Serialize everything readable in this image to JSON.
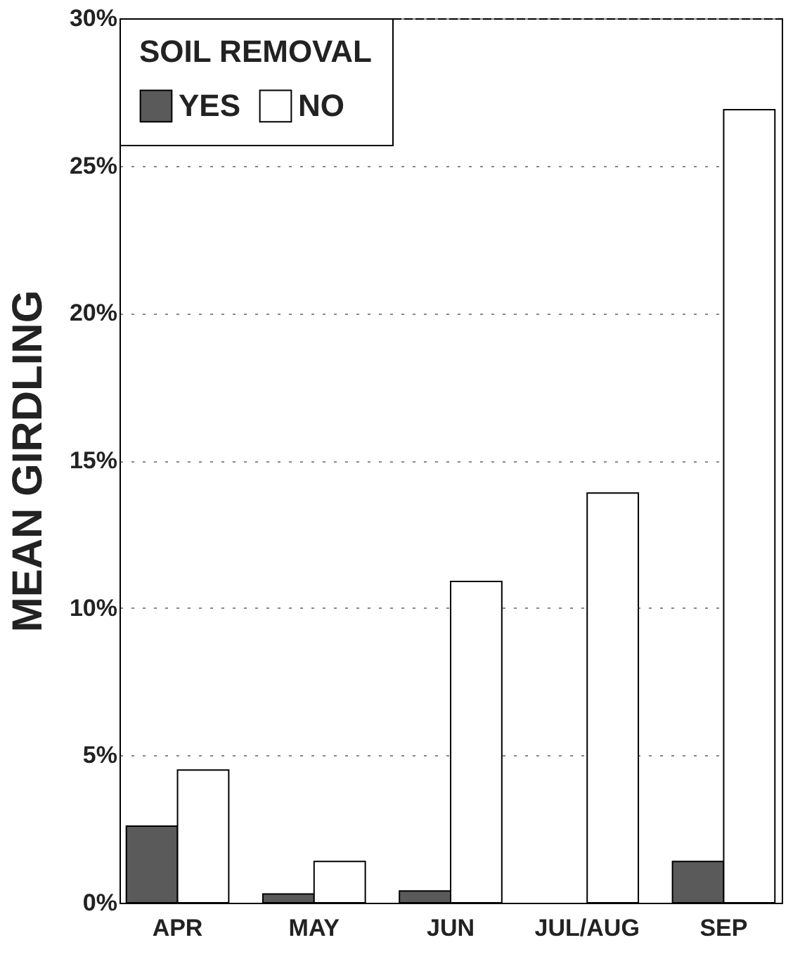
{
  "chart_data": {
    "type": "bar",
    "ylabel": "MEAN GIRDLING",
    "legend_title": "SOIL REMOVAL",
    "categories": [
      "APR",
      "MAY",
      "JUN",
      "JUL/AUG",
      "SEP"
    ],
    "series": [
      {
        "name": "YES",
        "color": "#5a5a5a",
        "values": [
          2.6,
          0.3,
          0.4,
          null,
          1.4
        ]
      },
      {
        "name": "NO",
        "color": "#ffffff",
        "values": [
          4.5,
          1.4,
          10.9,
          13.9,
          26.9
        ]
      }
    ],
    "ylim": [
      0,
      30
    ],
    "yticks": [
      {
        "value": 0,
        "label": "0%"
      },
      {
        "value": 5,
        "label": "5%"
      },
      {
        "value": 10,
        "label": "10%"
      },
      {
        "value": 15,
        "label": "15%"
      },
      {
        "value": 20,
        "label": "20%"
      },
      {
        "value": 25,
        "label": "25%"
      },
      {
        "value": 30,
        "label": "30%"
      }
    ],
    "grid": "y",
    "legend": "top left"
  }
}
